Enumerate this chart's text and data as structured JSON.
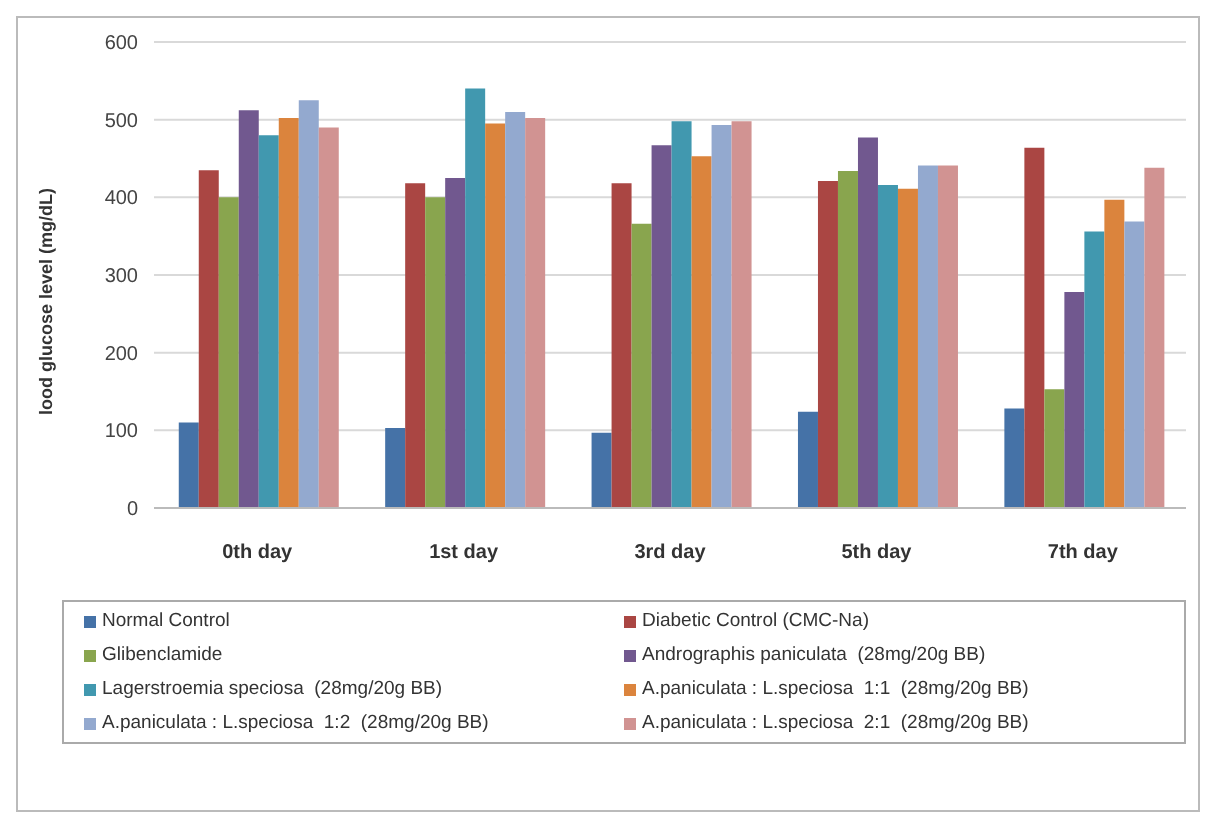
{
  "chart_data": {
    "type": "bar",
    "ylabel": "lood glucose level (mg/dL)",
    "categories": [
      "0th day",
      "1st day",
      "3rd day",
      "5th day",
      "7th day"
    ],
    "ylim": [
      0,
      600
    ],
    "yticks": [
      0,
      100,
      200,
      300,
      400,
      500,
      600
    ],
    "grid": "y",
    "legend": "bottom",
    "series": [
      {
        "name": "Normal Control",
        "color": "#4572a7",
        "values": [
          110,
          103,
          97,
          124,
          128
        ]
      },
      {
        "name": "Diabetic Control (CMC-Na)",
        "color": "#aa4643",
        "values": [
          435,
          418,
          418,
          421,
          464
        ]
      },
      {
        "name": "Glibenclamide",
        "color": "#89a54e",
        "values": [
          400,
          400,
          366,
          434,
          153
        ]
      },
      {
        "name": "Andrographis paniculata  (28mg/20g BB)",
        "color": "#71588f",
        "values": [
          512,
          425,
          467,
          477,
          278
        ]
      },
      {
        "name": "Lagerstroemia speciosa  (28mg/20g BB)",
        "color": "#4198af",
        "values": [
          480,
          540,
          498,
          416,
          356
        ]
      },
      {
        "name": "A.paniculata : L.speciosa  1:1  (28mg/20g BB)",
        "color": "#db843d",
        "values": [
          502,
          495,
          453,
          411,
          397
        ]
      },
      {
        "name": "A.paniculata : L.speciosa  1:2  (28mg/20g BB)",
        "color": "#93a9cf",
        "values": [
          525,
          510,
          493,
          441,
          369
        ]
      },
      {
        "name": "A.paniculata : L.speciosa  2:1  (28mg/20g BB)",
        "color": "#d19392",
        "values": [
          490,
          502,
          498,
          441,
          438
        ]
      }
    ]
  }
}
